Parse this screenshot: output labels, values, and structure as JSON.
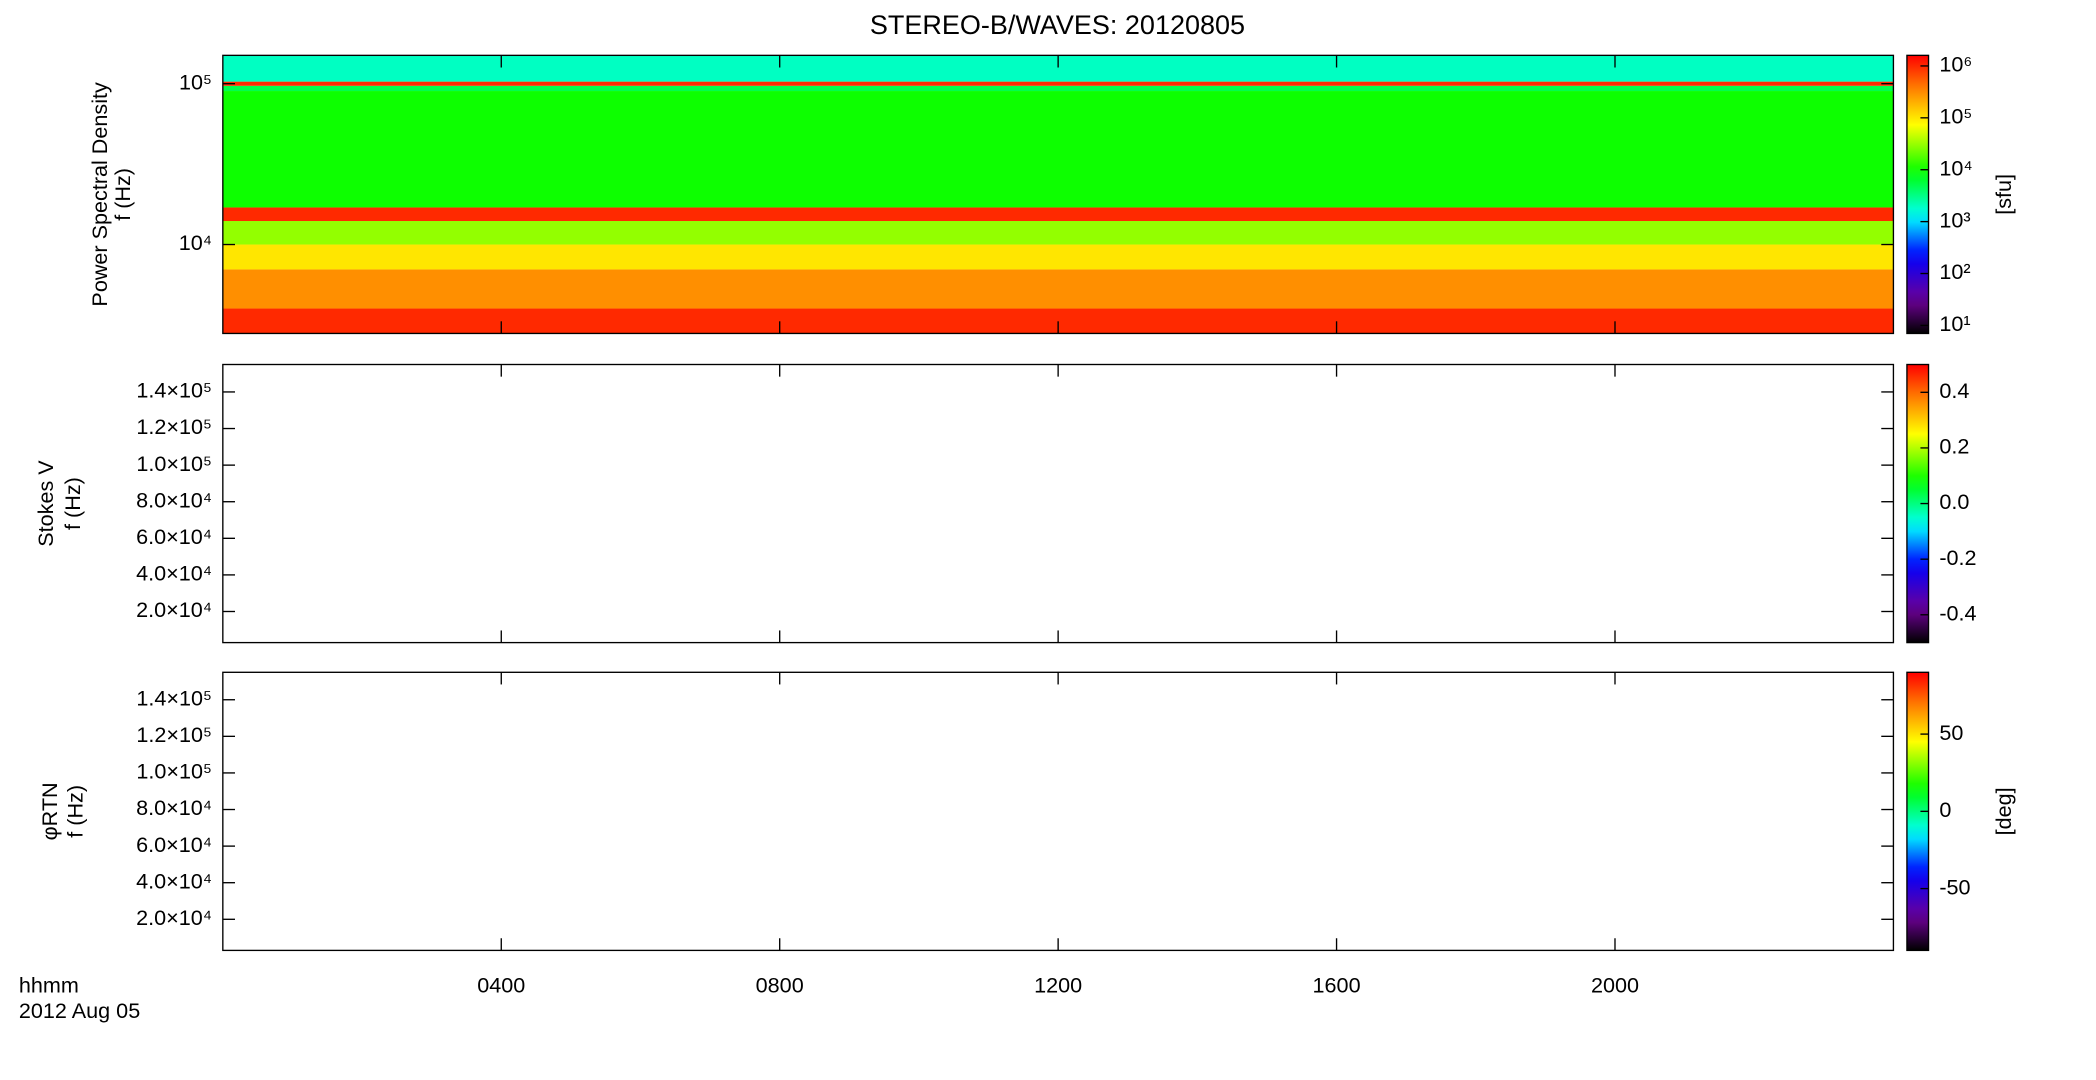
{
  "chart_data": [
    {
      "type": "heatmap",
      "title": "STEREO-B/WAVES: 20120805",
      "y_label": [
        "Power Spectral Density",
        "f (Hz)"
      ],
      "log_y": true,
      "ylim": [
        2800,
        150000
      ],
      "yticks": [
        {
          "value": 10000,
          "label": "10⁴"
        },
        {
          "value": 100000,
          "label": "10⁵"
        }
      ],
      "xlim": [
        0,
        24
      ],
      "xticks": [
        {
          "value": 4,
          "label": "0400"
        },
        {
          "value": 8,
          "label": "0800"
        },
        {
          "value": 12,
          "label": "1200"
        },
        {
          "value": 16,
          "label": "1600"
        },
        {
          "value": 20,
          "label": "2000"
        }
      ],
      "bands": {
        "edges": [
          2800,
          4000,
          7000,
          10000,
          14000,
          17000,
          90000,
          97000,
          103000,
          150000
        ],
        "values": [
          1000000,
          300000,
          100000,
          30000,
          1000000,
          10000,
          5000,
          1000000,
          2000
        ]
      },
      "colorbar": {
        "label": "[sfu]",
        "log": true,
        "lim": [
          7,
          1600000
        ],
        "ticks": [
          {
            "value": 10,
            "label": "10¹"
          },
          {
            "value": 100,
            "label": "10²"
          },
          {
            "value": 1000,
            "label": "10³"
          },
          {
            "value": 10000,
            "label": "10⁴"
          },
          {
            "value": 100000,
            "label": "10⁵"
          },
          {
            "value": 1000000,
            "label": "10⁶"
          }
        ]
      }
    },
    {
      "type": "heatmap",
      "y_label": [
        "Stokes V",
        "f (Hz)"
      ],
      "log_y": false,
      "ylim": [
        3000,
        155000
      ],
      "yticks": [
        {
          "value": 20000,
          "label": "2.0×10⁴"
        },
        {
          "value": 40000,
          "label": "4.0×10⁴"
        },
        {
          "value": 60000,
          "label": "6.0×10⁴"
        },
        {
          "value": 80000,
          "label": "8.0×10⁴"
        },
        {
          "value": 100000,
          "label": "1.0×10⁵"
        },
        {
          "value": 120000,
          "label": "1.2×10⁵"
        },
        {
          "value": 140000,
          "label": "1.4×10⁵"
        }
      ],
      "xlim": [
        0,
        24
      ],
      "xticks": [
        {
          "value": 4,
          "label": "0400"
        },
        {
          "value": 8,
          "label": "0800"
        },
        {
          "value": 12,
          "label": "1200"
        },
        {
          "value": 16,
          "label": "1600"
        },
        {
          "value": 20,
          "label": "2000"
        }
      ],
      "colorbar": {
        "log": false,
        "lim": [
          -0.5,
          0.5
        ],
        "ticks": [
          -0.4,
          -0.2,
          {
            "value": 0,
            "label": "0.0"
          },
          0.2,
          0.4
        ]
      }
    },
    {
      "type": "heatmap",
      "y_label": [
        "φRTN",
        "f (Hz)"
      ],
      "log_y": false,
      "ylim": [
        3000,
        155000
      ],
      "yticks": [
        {
          "value": 20000,
          "label": "2.0×10⁴"
        },
        {
          "value": 40000,
          "label": "4.0×10⁴"
        },
        {
          "value": 60000,
          "label": "6.0×10⁴"
        },
        {
          "value": 80000,
          "label": "8.0×10⁴"
        },
        {
          "value": 100000,
          "label": "1.0×10⁵"
        },
        {
          "value": 120000,
          "label": "1.2×10⁵"
        },
        {
          "value": 140000,
          "label": "1.4×10⁵"
        }
      ],
      "xlim": [
        0,
        24
      ],
      "xticks": [
        {
          "value": 4,
          "label": "0400"
        },
        {
          "value": 8,
          "label": "0800"
        },
        {
          "value": 12,
          "label": "1200"
        },
        {
          "value": 16,
          "label": "1600"
        },
        {
          "value": 20,
          "label": "2000"
        }
      ],
      "x_label": "hhmm",
      "date_label": "2012 Aug 05",
      "colorbar": {
        "label": "[deg]",
        "log": false,
        "lim": [
          -90,
          90
        ],
        "ticks": [
          -50,
          0,
          50
        ]
      }
    }
  ]
}
